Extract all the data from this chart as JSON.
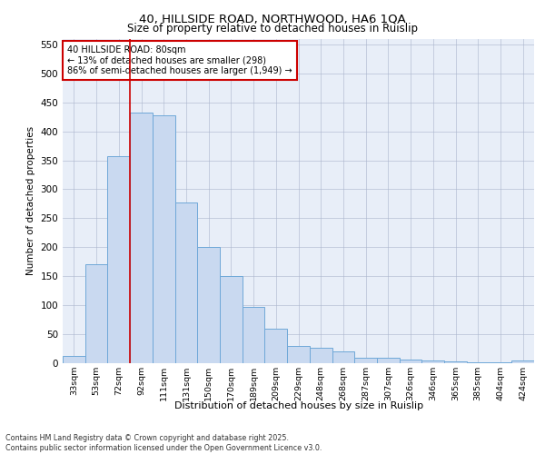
{
  "title_line1": "40, HILLSIDE ROAD, NORTHWOOD, HA6 1QA",
  "title_line2": "Size of property relative to detached houses in Ruislip",
  "xlabel": "Distribution of detached houses by size in Ruislip",
  "ylabel": "Number of detached properties",
  "bin_labels": [
    "33sqm",
    "53sqm",
    "72sqm",
    "92sqm",
    "111sqm",
    "131sqm",
    "150sqm",
    "170sqm",
    "189sqm",
    "209sqm",
    "229sqm",
    "248sqm",
    "268sqm",
    "287sqm",
    "307sqm",
    "326sqm",
    "346sqm",
    "365sqm",
    "385sqm",
    "404sqm",
    "424sqm"
  ],
  "bar_heights": [
    13,
    170,
    357,
    432,
    427,
    278,
    201,
    150,
    97,
    60,
    30,
    27,
    20,
    10,
    10,
    7,
    5,
    3,
    1,
    1,
    5
  ],
  "bar_color": "#c9d9f0",
  "bar_edge_color": "#6fa8d8",
  "red_line_x": 2.5,
  "red_line_color": "#cc0000",
  "annotation_title": "40 HILLSIDE ROAD: 80sqm",
  "annotation_line1": "← 13% of detached houses are smaller (298)",
  "annotation_line2": "86% of semi-detached houses are larger (1,949) →",
  "annotation_box_color": "#ffffff",
  "annotation_box_edge": "#cc0000",
  "ylim": [
    0,
    560
  ],
  "yticks": [
    0,
    50,
    100,
    150,
    200,
    250,
    300,
    350,
    400,
    450,
    500,
    550
  ],
  "background_color": "#e8eef8",
  "footer": "Contains HM Land Registry data © Crown copyright and database right 2025.\nContains public sector information licensed under the Open Government Licence v3.0.",
  "fig_bg": "#ffffff"
}
